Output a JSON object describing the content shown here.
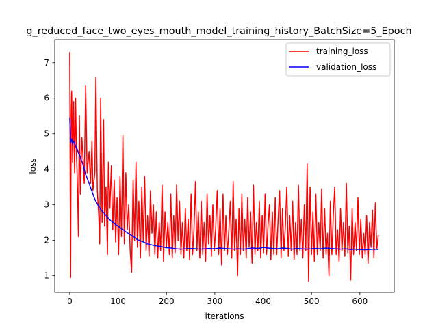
{
  "chart_data": {
    "type": "line",
    "title": "g_reduced_face_two_eyes_mouth_model_training_history_BatchSize=5_Epoch",
    "xlabel": "iterations",
    "ylabel": "loss",
    "xlim": [
      -31,
      671
    ],
    "ylim": [
      0.53,
      7.65
    ],
    "xticks": [
      0,
      100,
      200,
      300,
      400,
      500,
      600
    ],
    "yticks": [
      1,
      2,
      3,
      4,
      5,
      6,
      7
    ],
    "xtick_labels": [
      "0",
      "100",
      "200",
      "300",
      "400",
      "500",
      "600"
    ],
    "ytick_labels": [
      "1",
      "2",
      "3",
      "4",
      "5",
      "6",
      "7"
    ],
    "grid": false,
    "legend_position": "top-right",
    "series": [
      {
        "name": "training_loss",
        "color": "#ff0000",
        "points": [
          [
            0,
            7.3
          ],
          [
            1,
            3.3
          ],
          [
            2,
            0.95
          ],
          [
            3,
            5.6
          ],
          [
            4,
            6.2
          ],
          [
            6,
            4.2
          ],
          [
            8,
            5.9
          ],
          [
            10,
            3.9
          ],
          [
            12,
            6.0
          ],
          [
            14,
            4.4
          ],
          [
            16,
            3.5
          ],
          [
            18,
            2.1
          ],
          [
            20,
            5.5
          ],
          [
            22,
            3.3
          ],
          [
            25,
            4.9
          ],
          [
            28,
            4.2
          ],
          [
            30,
            3.6
          ],
          [
            33,
            6.35
          ],
          [
            36,
            3.9
          ],
          [
            40,
            4.5
          ],
          [
            43,
            3.6
          ],
          [
            46,
            4.8
          ],
          [
            48,
            3.4
          ],
          [
            52,
            3.9
          ],
          [
            54,
            6.6
          ],
          [
            57,
            3.4
          ],
          [
            60,
            2.7
          ],
          [
            62,
            1.9
          ],
          [
            64,
            6.0
          ],
          [
            67,
            2.5
          ],
          [
            70,
            5.4
          ],
          [
            72,
            2.4
          ],
          [
            75,
            3.5
          ],
          [
            78,
            1.6
          ],
          [
            80,
            4.2
          ],
          [
            83,
            2.9
          ],
          [
            86,
            4.1
          ],
          [
            89,
            2.3
          ],
          [
            92,
            3.7
          ],
          [
            95,
            1.95
          ],
          [
            98,
            3.2
          ],
          [
            101,
            1.6
          ],
          [
            104,
            3.8
          ],
          [
            107,
            2.1
          ],
          [
            110,
            4.95
          ],
          [
            113,
            1.9
          ],
          [
            116,
            3.9
          ],
          [
            119,
            2.3
          ],
          [
            122,
            3.0
          ],
          [
            125,
            1.7
          ],
          [
            128,
            1.1
          ],
          [
            131,
            3.7
          ],
          [
            134,
            2.0
          ],
          [
            137,
            4.2
          ],
          [
            140,
            1.8
          ],
          [
            143,
            3.1
          ],
          [
            146,
            1.5
          ],
          [
            149,
            3.5
          ],
          [
            152,
            2.0
          ],
          [
            155,
            3.8
          ],
          [
            158,
            1.7
          ],
          [
            161,
            2.7
          ],
          [
            164,
            1.55
          ],
          [
            167,
            3.4
          ],
          [
            170,
            2.2
          ],
          [
            173,
            3.0
          ],
          [
            176,
            1.6
          ],
          [
            179,
            2.8
          ],
          [
            182,
            1.5
          ],
          [
            185,
            2.5
          ],
          [
            188,
            1.7
          ],
          [
            191,
            3.55
          ],
          [
            194,
            1.4
          ],
          [
            197,
            2.8
          ],
          [
            200,
            1.8
          ],
          [
            203,
            2.5
          ],
          [
            206,
            1.6
          ],
          [
            209,
            3.3
          ],
          [
            212,
            1.5
          ],
          [
            215,
            2.7
          ],
          [
            218,
            1.65
          ],
          [
            221,
            3.55
          ],
          [
            224,
            2.0
          ],
          [
            227,
            3.1
          ],
          [
            230,
            1.6
          ],
          [
            233,
            2.5
          ],
          [
            236,
            1.5
          ],
          [
            239,
            2.9
          ],
          [
            242,
            1.7
          ],
          [
            245,
            2.6
          ],
          [
            248,
            1.45
          ],
          [
            251,
            3.3
          ],
          [
            254,
            1.6
          ],
          [
            257,
            2.3
          ],
          [
            260,
            3.65
          ],
          [
            263,
            1.7
          ],
          [
            266,
            2.8
          ],
          [
            269,
            1.5
          ],
          [
            272,
            3.1
          ],
          [
            275,
            1.6
          ],
          [
            278,
            2.5
          ],
          [
            281,
            1.4
          ],
          [
            284,
            3.3
          ],
          [
            287,
            1.9
          ],
          [
            290,
            2.7
          ],
          [
            293,
            1.55
          ],
          [
            296,
            3.0
          ],
          [
            299,
            1.7
          ],
          [
            302,
            2.4
          ],
          [
            305,
            3.4
          ],
          [
            308,
            1.6
          ],
          [
            311,
            2.9
          ],
          [
            314,
            1.3
          ],
          [
            317,
            3.3
          ],
          [
            320,
            1.7
          ],
          [
            323,
            2.7
          ],
          [
            326,
            1.6
          ],
          [
            329,
            2.3
          ],
          [
            332,
            3.1
          ],
          [
            335,
            1.5
          ],
          [
            338,
            3.65
          ],
          [
            341,
            1.7
          ],
          [
            344,
            2.6
          ],
          [
            347,
            1.0
          ],
          [
            350,
            2.9
          ],
          [
            353,
            1.6
          ],
          [
            356,
            3.3
          ],
          [
            359,
            1.7
          ],
          [
            362,
            2.6
          ],
          [
            365,
            1.5
          ],
          [
            368,
            3.2
          ],
          [
            371,
            1.8
          ],
          [
            374,
            2.8
          ],
          [
            377,
            1.35
          ],
          [
            380,
            3.55
          ],
          [
            383,
            1.6
          ],
          [
            386,
            2.5
          ],
          [
            389,
            1.7
          ],
          [
            392,
            3.1
          ],
          [
            395,
            1.5
          ],
          [
            398,
            2.7
          ],
          [
            401,
            1.65
          ],
          [
            404,
            3.3
          ],
          [
            407,
            1.6
          ],
          [
            410,
            2.4
          ],
          [
            413,
            3.0
          ],
          [
            416,
            1.45
          ],
          [
            419,
            2.8
          ],
          [
            422,
            1.6
          ],
          [
            425,
            3.2
          ],
          [
            428,
            1.6
          ],
          [
            431,
            2.6
          ],
          [
            434,
            3.4
          ],
          [
            437,
            1.5
          ],
          [
            440,
            2.9
          ],
          [
            443,
            1.7
          ],
          [
            446,
            2.4
          ],
          [
            449,
            3.5
          ],
          [
            452,
            1.55
          ],
          [
            455,
            2.7
          ],
          [
            458,
            1.7
          ],
          [
            461,
            3.1
          ],
          [
            464,
            1.45
          ],
          [
            467,
            2.5
          ],
          [
            470,
            1.6
          ],
          [
            473,
            3.55
          ],
          [
            476,
            1.7
          ],
          [
            479,
            2.6
          ],
          [
            482,
            1.5
          ],
          [
            485,
            3.0
          ],
          [
            488,
            1.7
          ],
          [
            491,
            4.15
          ],
          [
            494,
            0.85
          ],
          [
            497,
            3.5
          ],
          [
            500,
            1.6
          ],
          [
            503,
            2.8
          ],
          [
            506,
            1.4
          ],
          [
            509,
            3.3
          ],
          [
            512,
            1.6
          ],
          [
            515,
            2.5
          ],
          [
            518,
            1.7
          ],
          [
            521,
            3.45
          ],
          [
            524,
            1.5
          ],
          [
            527,
            2.9
          ],
          [
            530,
            1.6
          ],
          [
            533,
            2.2
          ],
          [
            536,
            1.0
          ],
          [
            539,
            3.1
          ],
          [
            542,
            1.6
          ],
          [
            545,
            2.7
          ],
          [
            548,
            3.5
          ],
          [
            551,
            1.6
          ],
          [
            554,
            2.3
          ],
          [
            557,
            1.4
          ],
          [
            560,
            2.9
          ],
          [
            563,
            1.7
          ],
          [
            566,
            2.5
          ],
          [
            569,
            1.55
          ],
          [
            572,
            3.6
          ],
          [
            575,
            1.65
          ],
          [
            578,
            2.4
          ],
          [
            581,
            0.88
          ],
          [
            584,
            2.9
          ],
          [
            587,
            1.6
          ],
          [
            590,
            2.5
          ],
          [
            593,
            1.7
          ],
          [
            596,
            3.2
          ],
          [
            599,
            1.6
          ],
          [
            602,
            2.6
          ],
          [
            605,
            1.5
          ],
          [
            608,
            2.2
          ],
          [
            611,
            1.6
          ],
          [
            614,
            2.7
          ],
          [
            617,
            1.35
          ],
          [
            620,
            2.5
          ],
          [
            623,
            1.8
          ],
          [
            626,
            2.85
          ],
          [
            629,
            1.5
          ],
          [
            632,
            3.05
          ],
          [
            635,
            1.75
          ],
          [
            638,
            2.15
          ]
        ]
      },
      {
        "name": "validation_loss",
        "color": "#0000ff",
        "points": [
          [
            0,
            5.45
          ],
          [
            2,
            4.75
          ],
          [
            4,
            4.85
          ],
          [
            6,
            4.7
          ],
          [
            8,
            4.8
          ],
          [
            10,
            4.75
          ],
          [
            12,
            4.65
          ],
          [
            14,
            4.6
          ],
          [
            16,
            4.55
          ],
          [
            18,
            4.45
          ],
          [
            20,
            4.4
          ],
          [
            22,
            4.35
          ],
          [
            24,
            4.25
          ],
          [
            26,
            4.2
          ],
          [
            28,
            4.1
          ],
          [
            30,
            4.0
          ],
          [
            33,
            3.85
          ],
          [
            36,
            3.75
          ],
          [
            40,
            3.6
          ],
          [
            44,
            3.45
          ],
          [
            48,
            3.3
          ],
          [
            52,
            3.15
          ],
          [
            56,
            3.05
          ],
          [
            60,
            2.95
          ],
          [
            65,
            2.85
          ],
          [
            70,
            2.78
          ],
          [
            75,
            2.7
          ],
          [
            80,
            2.62
          ],
          [
            85,
            2.55
          ],
          [
            90,
            2.5
          ],
          [
            95,
            2.44
          ],
          [
            100,
            2.4
          ],
          [
            110,
            2.3
          ],
          [
            120,
            2.2
          ],
          [
            130,
            2.12
          ],
          [
            140,
            2.02
          ],
          [
            150,
            1.97
          ],
          [
            160,
            1.9
          ],
          [
            170,
            1.87
          ],
          [
            180,
            1.84
          ],
          [
            190,
            1.82
          ],
          [
            200,
            1.79
          ],
          [
            210,
            1.78
          ],
          [
            220,
            1.76
          ],
          [
            230,
            1.75
          ],
          [
            240,
            1.76
          ],
          [
            250,
            1.77
          ],
          [
            260,
            1.76
          ],
          [
            270,
            1.75
          ],
          [
            280,
            1.76
          ],
          [
            290,
            1.77
          ],
          [
            300,
            1.76
          ],
          [
            310,
            1.78
          ],
          [
            320,
            1.77
          ],
          [
            330,
            1.76
          ],
          [
            340,
            1.75
          ],
          [
            350,
            1.76
          ],
          [
            360,
            1.75
          ],
          [
            370,
            1.77
          ],
          [
            380,
            1.78
          ],
          [
            390,
            1.77
          ],
          [
            400,
            1.8
          ],
          [
            410,
            1.78
          ],
          [
            420,
            1.77
          ],
          [
            430,
            1.76
          ],
          [
            440,
            1.78
          ],
          [
            450,
            1.77
          ],
          [
            460,
            1.75
          ],
          [
            470,
            1.77
          ],
          [
            480,
            1.76
          ],
          [
            490,
            1.75
          ],
          [
            500,
            1.76
          ],
          [
            510,
            1.77
          ],
          [
            520,
            1.76
          ],
          [
            530,
            1.78
          ],
          [
            540,
            1.77
          ],
          [
            550,
            1.76
          ],
          [
            560,
            1.75
          ],
          [
            570,
            1.76
          ],
          [
            580,
            1.74
          ],
          [
            590,
            1.75
          ],
          [
            600,
            1.74
          ],
          [
            610,
            1.73
          ],
          [
            620,
            1.74
          ],
          [
            630,
            1.75
          ],
          [
            638,
            1.74
          ]
        ]
      }
    ]
  }
}
